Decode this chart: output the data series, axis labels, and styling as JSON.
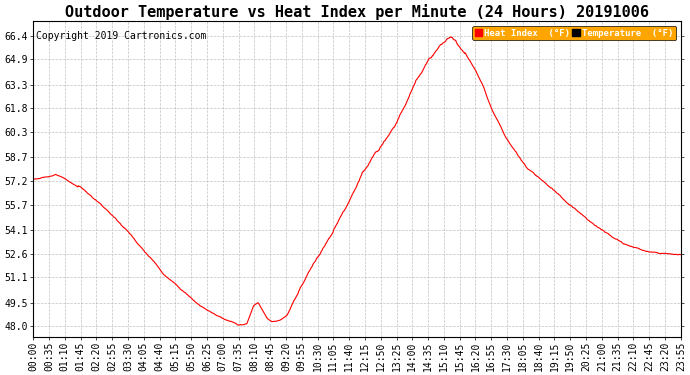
{
  "title": "Outdoor Temperature vs Heat Index per Minute (24 Hours) 20191006",
  "copyright": "Copyright 2019 Cartronics.com",
  "legend_labels": [
    "Heat Index  (°F)",
    "Temperature  (°F)"
  ],
  "line_color": "red",
  "line_width": 0.8,
  "yticks": [
    48.0,
    49.5,
    51.1,
    52.6,
    54.1,
    55.7,
    57.2,
    58.7,
    60.3,
    61.8,
    63.3,
    64.9,
    66.4
  ],
  "ylim": [
    47.3,
    67.3
  ],
  "background_color": "white",
  "plot_bg": "white",
  "grid_color": "#bbbbbb",
  "title_fontsize": 11,
  "tick_fontsize": 7,
  "copyright_fontsize": 7,
  "xtick_labels": [
    "00:00",
    "00:35",
    "01:10",
    "01:45",
    "02:20",
    "02:55",
    "03:30",
    "04:05",
    "04:40",
    "05:15",
    "05:50",
    "06:25",
    "07:00",
    "07:35",
    "08:10",
    "08:45",
    "09:20",
    "09:55",
    "10:30",
    "11:05",
    "11:40",
    "12:15",
    "12:50",
    "13:25",
    "14:00",
    "14:35",
    "15:10",
    "15:45",
    "16:20",
    "16:55",
    "17:30",
    "18:05",
    "18:40",
    "19:15",
    "19:50",
    "20:25",
    "21:00",
    "21:35",
    "22:10",
    "22:45",
    "23:20",
    "23:55"
  ]
}
